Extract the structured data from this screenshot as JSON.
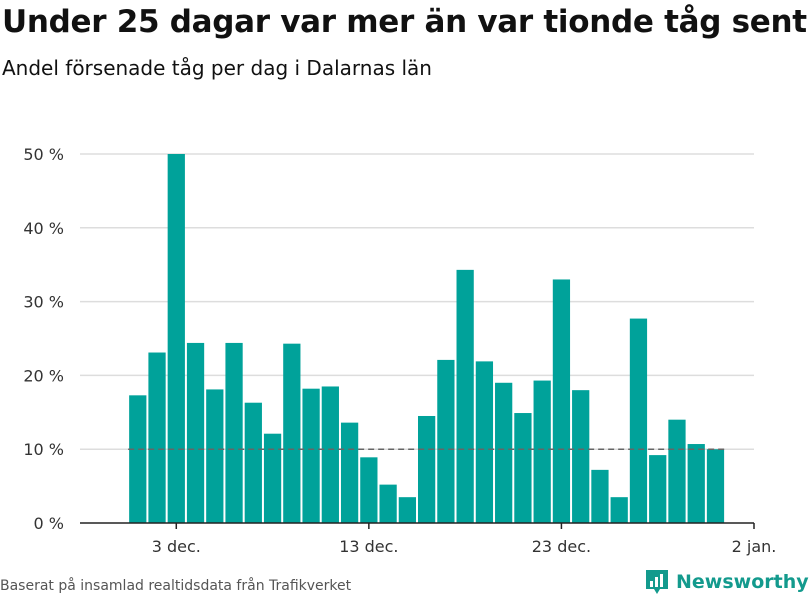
{
  "header": {
    "title": "Under 25 dagar var mer än var tionde tåg sent",
    "subtitle": "Andel försenade tåg per dag i Dalarnas län"
  },
  "footer": {
    "source": "Baserat på insamlad realtidsdata från Trafikverket",
    "brand": "Newsworthy"
  },
  "colors": {
    "bar": "#00a29a",
    "grid": "#dddddd",
    "reference_line": "#666666",
    "brand": "#139a8d"
  },
  "chart_data": {
    "type": "bar",
    "title": "Under 25 dagar var mer än var tionde tåg sent",
    "subtitle": "Andel försenade tåg per dag i Dalarnas län",
    "x": [
      "2023-12-01",
      "2023-12-02",
      "2023-12-03",
      "2023-12-04",
      "2023-12-05",
      "2023-12-06",
      "2023-12-07",
      "2023-12-08",
      "2023-12-09",
      "2023-12-10",
      "2023-12-11",
      "2023-12-12",
      "2023-12-13",
      "2023-12-14",
      "2023-12-15",
      "2023-12-16",
      "2023-12-17",
      "2023-12-18",
      "2023-12-19",
      "2023-12-20",
      "2023-12-21",
      "2023-12-22",
      "2023-12-23",
      "2023-12-24",
      "2023-12-25",
      "2023-12-26",
      "2023-12-27",
      "2023-12-28",
      "2023-12-29",
      "2023-12-30",
      "2023-12-31"
    ],
    "values": [
      17.3,
      23.1,
      50.0,
      24.4,
      18.1,
      24.4,
      16.3,
      12.1,
      24.3,
      18.2,
      18.5,
      13.6,
      8.9,
      5.2,
      3.5,
      14.5,
      22.1,
      34.3,
      21.9,
      19.0,
      14.9,
      19.3,
      33.0,
      18.0,
      7.2,
      3.5,
      27.7,
      9.2,
      14.0,
      10.7,
      10.0
    ],
    "reference_line": 10,
    "xlim": [
      "2023-11-28",
      "2024-01-02"
    ],
    "ylim": [
      0,
      50
    ],
    "yticks": [
      0,
      10,
      20,
      30,
      40,
      50
    ],
    "ytick_labels": [
      "0 %",
      "10 %",
      "20 %",
      "30 %",
      "40 %",
      "50 %"
    ],
    "xticks": [
      "2023-12-03",
      "2023-12-13",
      "2023-12-23",
      "2024-01-02"
    ],
    "xtick_labels": [
      "3 dec.",
      "13 dec.",
      "23 dec.",
      "2 jan."
    ],
    "grid": true,
    "xlabel": "",
    "ylabel": ""
  }
}
